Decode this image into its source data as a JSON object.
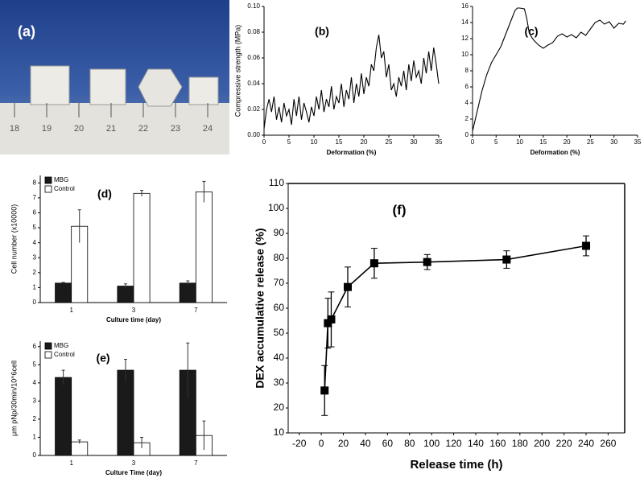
{
  "photo": {
    "label": "(a)",
    "ruler_labels": [
      "18",
      "19",
      "20",
      "21",
      "22",
      "23",
      "24"
    ]
  },
  "chart_data": [
    {
      "type": "line",
      "annotation": "(b)",
      "x_label": "Deformation (%)",
      "y_label": "Compressive strength (MPa)",
      "x": [
        0,
        0.5,
        1,
        1.5,
        2,
        2.5,
        3,
        3.5,
        4,
        4.5,
        5,
        5.5,
        6,
        6.5,
        7,
        7.5,
        8,
        8.5,
        9,
        9.5,
        10,
        10.5,
        11,
        11.5,
        12,
        12.5,
        13,
        13.5,
        14,
        14.5,
        15,
        15.5,
        16,
        16.5,
        17,
        17.5,
        18,
        18.5,
        19,
        19.5,
        20,
        20.5,
        21,
        21.5,
        22,
        22.5,
        23,
        23.5,
        24,
        24.5,
        25,
        25.5,
        26,
        26.5,
        27,
        27.5,
        28,
        28.5,
        29,
        29.5,
        30,
        30.5,
        31,
        31.5,
        32,
        32.5,
        33,
        33.5,
        34,
        34.5,
        35
      ],
      "series": [
        {
          "color": "#000000",
          "values": [
            0.005,
            0.02,
            0.028,
            0.018,
            0.03,
            0.012,
            0.022,
            0.01,
            0.025,
            0.015,
            0.02,
            0.008,
            0.028,
            0.015,
            0.03,
            0.012,
            0.025,
            0.018,
            0.01,
            0.022,
            0.015,
            0.03,
            0.02,
            0.035,
            0.018,
            0.028,
            0.022,
            0.038,
            0.02,
            0.03,
            0.025,
            0.04,
            0.022,
            0.035,
            0.028,
            0.045,
            0.025,
            0.04,
            0.03,
            0.048,
            0.032,
            0.045,
            0.038,
            0.055,
            0.05,
            0.068,
            0.078,
            0.06,
            0.065,
            0.045,
            0.055,
            0.035,
            0.04,
            0.03,
            0.045,
            0.038,
            0.05,
            0.035,
            0.055,
            0.042,
            0.058,
            0.045,
            0.05,
            0.04,
            0.06,
            0.048,
            0.065,
            0.05,
            0.068,
            0.055,
            0.04
          ]
        }
      ],
      "xlim": [
        0,
        35
      ],
      "xticks": [
        0,
        5,
        10,
        15,
        20,
        25,
        30,
        35
      ],
      "ylim": [
        0,
        0.1
      ],
      "yticks": [
        {
          "value": 0,
          "label": "0.00"
        },
        {
          "value": 0.02,
          "label": "0.02"
        },
        {
          "value": 0.04,
          "label": "0.04"
        },
        {
          "value": 0.06,
          "label": "0.06"
        },
        {
          "value": 0.08,
          "label": "0.08"
        },
        {
          "value": 0.1,
          "label": "0.10"
        }
      ]
    },
    {
      "type": "line",
      "annotation": "(c)",
      "x_label": "Deformation (%)",
      "x": [
        0,
        1,
        2,
        3,
        4,
        5,
        6,
        7,
        8,
        9,
        9.5,
        10,
        11,
        11.5,
        12,
        12.5,
        13,
        14,
        15,
        16,
        17,
        18,
        19,
        20,
        21,
        22,
        23,
        24,
        25,
        26,
        27,
        28,
        29,
        30,
        31,
        32,
        32.5
      ],
      "series": [
        {
          "color": "#000000",
          "values": [
            0.5,
            3,
            5.5,
            7.5,
            9,
            10,
            11,
            12.5,
            14,
            15.5,
            15.8,
            15.8,
            15.7,
            14.5,
            12.8,
            12.2,
            11.8,
            11.2,
            10.8,
            11.2,
            11.5,
            12.3,
            12.6,
            12.2,
            12.5,
            12.1,
            12.8,
            12.4,
            13.2,
            14.0,
            14.3,
            13.8,
            14.1,
            13.3,
            13.9,
            13.8,
            14.2
          ]
        }
      ],
      "xlim": [
        0,
        35
      ],
      "xticks": [
        0,
        5,
        10,
        15,
        20,
        25,
        30,
        35
      ],
      "ylim": [
        0,
        16
      ],
      "yticks": [
        0,
        2,
        4,
        6,
        8,
        10,
        12,
        14,
        16
      ]
    },
    {
      "type": "bar",
      "annotation": "(d)",
      "x_label": "Culture time (day)",
      "y_label": "Cell number (x10000)",
      "legend": "top-left",
      "categories": [
        "1",
        "3",
        "7"
      ],
      "series": [
        {
          "name": "MBG",
          "color": "#1a1a1a",
          "values": [
            1.3,
            1.1,
            1.3
          ],
          "errors": [
            0.05,
            0.15,
            0.15
          ]
        },
        {
          "name": "Control",
          "color": "#ffffff",
          "values": [
            5.1,
            7.3,
            7.4
          ],
          "errors": [
            1.1,
            0.2,
            0.7
          ]
        }
      ],
      "ylim": [
        0,
        8.5
      ],
      "yticks": [
        0,
        1,
        2,
        3,
        4,
        5,
        6,
        7,
        8
      ]
    },
    {
      "type": "bar",
      "annotation": "(e)",
      "x_label": "Culture Time (day)",
      "y_label": "μm pNp/30min/10^6cell",
      "legend": "top-left",
      "categories": [
        "1",
        "3",
        "7"
      ],
      "series": [
        {
          "name": "MBG",
          "color": "#1a1a1a",
          "values": [
            4.3,
            4.7,
            4.7
          ],
          "errors": [
            0.4,
            0.6,
            1.5
          ]
        },
        {
          "name": "Control",
          "color": "#ffffff",
          "values": [
            0.75,
            0.7,
            1.1
          ],
          "errors": [
            0.1,
            0.3,
            0.8
          ]
        }
      ],
      "ylim": [
        0,
        6.3
      ],
      "yticks": [
        0,
        1,
        2,
        3,
        4,
        5,
        6
      ]
    },
    {
      "type": "line",
      "annotation": "(f)",
      "x_label": "Release time (h)",
      "y_label": "DEX accumulative release (%)",
      "marker": "square",
      "x": [
        3,
        6,
        9,
        24,
        48,
        96,
        168,
        240
      ],
      "series": [
        {
          "color": "#000000",
          "values": [
            27,
            54,
            55.5,
            68.5,
            78,
            78.5,
            79.5,
            85
          ],
          "errors": [
            10,
            10,
            11,
            8,
            6,
            3,
            3.5,
            4
          ]
        }
      ],
      "xlim": [
        -30,
        275
      ],
      "xticks": [
        -20,
        0,
        20,
        40,
        60,
        80,
        100,
        120,
        140,
        160,
        180,
        200,
        220,
        240,
        260
      ],
      "ylim": [
        10,
        110
      ],
      "yticks": [
        10,
        20,
        30,
        40,
        50,
        60,
        70,
        80,
        90,
        100,
        110
      ]
    }
  ]
}
